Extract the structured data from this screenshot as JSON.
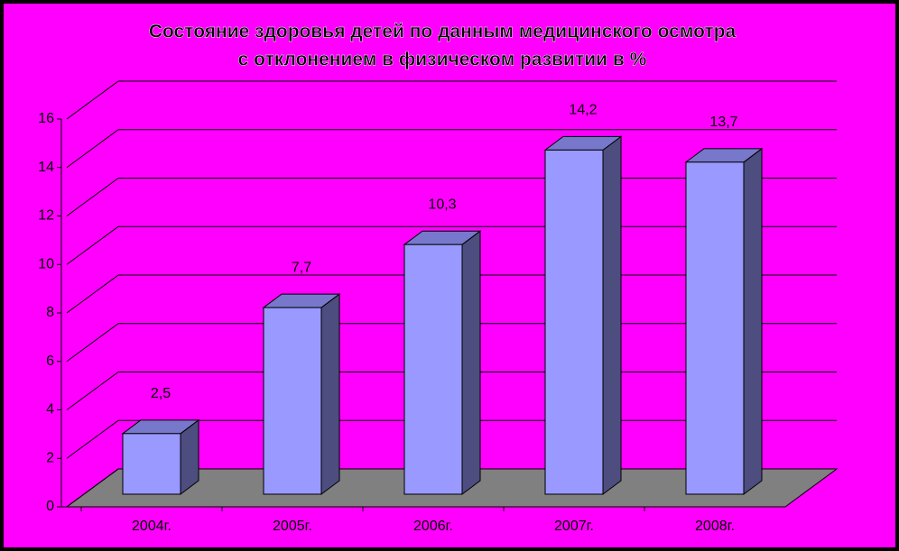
{
  "chart_data": {
    "type": "bar3d",
    "title": [
      "Состояние здоровья детей по данным медицинского осмотра",
      "с отклонением в физическом развитии в %"
    ],
    "categories": [
      "2004г.",
      "2005г.",
      "2006г.",
      "2007г.",
      "2008г."
    ],
    "values": [
      2.5,
      7.7,
      10.3,
      14.2,
      13.7
    ],
    "value_labels": [
      "2,5",
      "7,7",
      "10,3",
      "14,2",
      "13,7"
    ],
    "color": "#9999ff",
    "ylim": [
      0,
      16
    ],
    "yticks": [
      0,
      2,
      4,
      6,
      8,
      10,
      12,
      14,
      16
    ],
    "grid": true
  }
}
